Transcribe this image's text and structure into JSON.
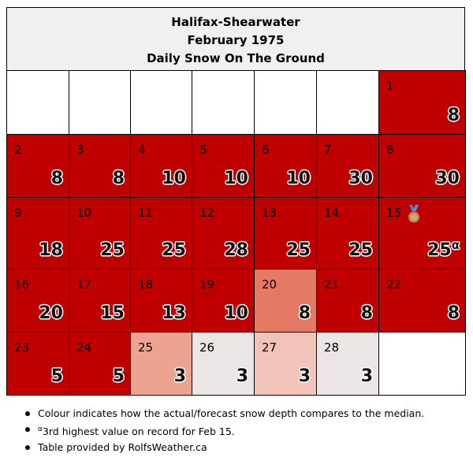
{
  "header": {
    "station": "Halifax-Shearwater",
    "period": "February 1975",
    "metric": "Daily Snow On The Ground"
  },
  "colors": {
    "well_above": "#c00000",
    "above": "#e47a63",
    "slightly_above": "#eca38f",
    "near": "#f2c3b8",
    "near_light": "#ece5e6",
    "empty": "#ffffff"
  },
  "calendar": [
    {
      "day": "",
      "value": "",
      "color": "empty"
    },
    {
      "day": "",
      "value": "",
      "color": "empty"
    },
    {
      "day": "",
      "value": "",
      "color": "empty"
    },
    {
      "day": "",
      "value": "",
      "color": "empty"
    },
    {
      "day": "",
      "value": "",
      "color": "empty"
    },
    {
      "day": "",
      "value": "",
      "color": "empty"
    },
    {
      "day": "1",
      "value": "8",
      "color": "well_above"
    },
    {
      "day": "2",
      "value": "8",
      "color": "well_above"
    },
    {
      "day": "3",
      "value": "8",
      "color": "well_above"
    },
    {
      "day": "4",
      "value": "10",
      "color": "well_above"
    },
    {
      "day": "5",
      "value": "10",
      "color": "well_above"
    },
    {
      "day": "6",
      "value": "10",
      "color": "well_above"
    },
    {
      "day": "7",
      "value": "30",
      "color": "well_above"
    },
    {
      "day": "8",
      "value": "30",
      "color": "well_above"
    },
    {
      "day": "9",
      "value": "18",
      "color": "well_above"
    },
    {
      "day": "10",
      "value": "25",
      "color": "well_above"
    },
    {
      "day": "11",
      "value": "25",
      "color": "well_above"
    },
    {
      "day": "12",
      "value": "28",
      "color": "well_above"
    },
    {
      "day": "13",
      "value": "25",
      "color": "well_above"
    },
    {
      "day": "14",
      "value": "25",
      "color": "well_above"
    },
    {
      "day": "15",
      "value": "25",
      "color": "well_above",
      "mark": "α",
      "medal": "bronze-medal-icon"
    },
    {
      "day": "16",
      "value": "20",
      "color": "well_above"
    },
    {
      "day": "17",
      "value": "15",
      "color": "well_above"
    },
    {
      "day": "18",
      "value": "13",
      "color": "well_above"
    },
    {
      "day": "19",
      "value": "10",
      "color": "well_above"
    },
    {
      "day": "20",
      "value": "8",
      "color": "above"
    },
    {
      "day": "21",
      "value": "8",
      "color": "well_above"
    },
    {
      "day": "22",
      "value": "8",
      "color": "well_above"
    },
    {
      "day": "23",
      "value": "5",
      "color": "well_above"
    },
    {
      "day": "24",
      "value": "5",
      "color": "well_above"
    },
    {
      "day": "25",
      "value": "3",
      "color": "slightly_above"
    },
    {
      "day": "26",
      "value": "3",
      "color": "near_light"
    },
    {
      "day": "27",
      "value": "3",
      "color": "near"
    },
    {
      "day": "28",
      "value": "3",
      "color": "near_light"
    },
    {
      "day": "",
      "value": "",
      "color": "empty"
    }
  ],
  "notes": {
    "colour_note": "Colour indicates how the actual/forecast snow depth compares to the median.",
    "record_mark": "α",
    "record_note": "3rd highest value on record for Feb 15.",
    "credit": "Table provided by RolfsWeather.ca"
  }
}
